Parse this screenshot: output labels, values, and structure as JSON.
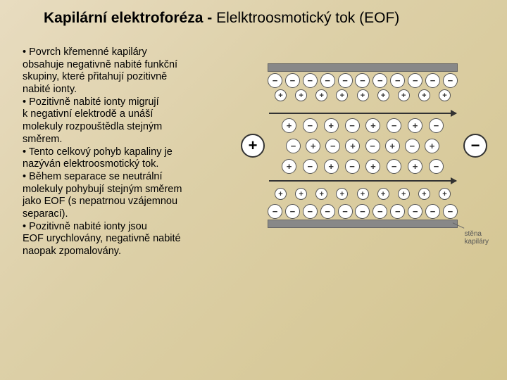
{
  "title_bold": "Kapilární elektroforéza - ",
  "title_rest": "Elelktroosmotický tok (EOF)",
  "bullets": [
    "• Povrch křemenné kapiláry",
    "obsahuje negativně nabité funkční",
    "skupiny, které přitahují pozitivně",
    " nabité ionty.",
    "• Pozitivně nabité ionty migrují",
    "k negativní elektrodě a unáší",
    "molekuly rozpouštědla stejným",
    "směrem.",
    "• Tento celkový pohyb kapaliny je",
    "nazýván elektroosmotický tok.",
    "• Během separace se neutrální",
    "molekuly pohybují stejným směrem",
    "jako EOF (s nepatrnou vzájemnou",
    " separací).",
    "• Pozitivně nabité ionty jsou",
    "EOF urychlovány, negativně nabité",
    "naopak zpomalovány."
  ],
  "diagram": {
    "electrode_left": "+",
    "electrode_right": "−",
    "wall_label_1": "stěna",
    "wall_label_2": "kapiláry",
    "rows": {
      "r1": [
        "−",
        "−",
        "−",
        "−",
        "−",
        "−",
        "−",
        "−",
        "−",
        "−",
        "−"
      ],
      "r2": [
        "+",
        "+",
        "+",
        "+",
        "+",
        "+",
        "+",
        "+",
        "+"
      ],
      "r3": [
        "+",
        "−",
        "+",
        "−",
        "+",
        "−",
        "+",
        "−"
      ],
      "r4": [
        "−",
        "+",
        "−",
        "+",
        "−",
        "+",
        "−",
        "+"
      ],
      "r5": [
        "+",
        "−",
        "+",
        "−",
        "+",
        "−",
        "+",
        "−"
      ],
      "r6": [
        "+",
        "+",
        "+",
        "+",
        "+",
        "+",
        "+",
        "+",
        "+"
      ],
      "r7": [
        "−",
        "−",
        "−",
        "−",
        "−",
        "−",
        "−",
        "−",
        "−",
        "−",
        "−"
      ]
    },
    "colors": {
      "wall": "#888888",
      "circle_border": "#555555",
      "arrow": "#333333"
    }
  }
}
